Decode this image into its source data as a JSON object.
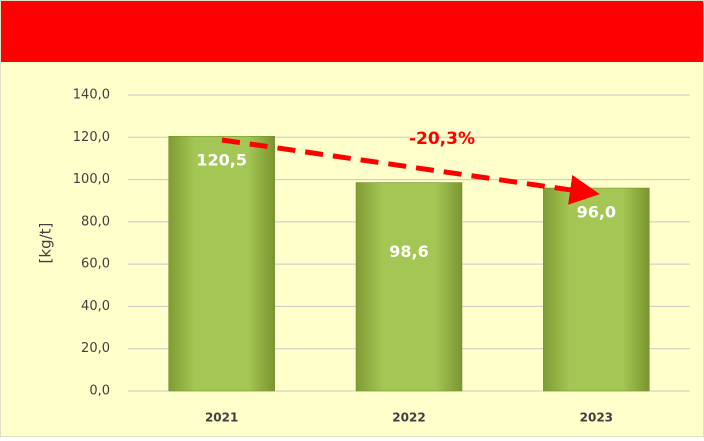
{
  "chart_data": {
    "type": "bar",
    "ylabel": "[kg/t]",
    "annotation": "-20,3%",
    "categories": [
      "2021",
      "2022",
      "2023"
    ],
    "values": [
      120.5,
      98.6,
      96.0
    ],
    "value_labels": [
      "120,5",
      "98,6",
      "96,0"
    ],
    "color": "#9bbb45",
    "ylim": [
      0,
      140
    ],
    "yticks": [
      {
        "value": 0,
        "label": "0,0"
      },
      {
        "value": 20,
        "label": "20,0"
      },
      {
        "value": 40,
        "label": "40,0"
      },
      {
        "value": 60,
        "label": "60,0"
      },
      {
        "value": 80,
        "label": "80,0"
      },
      {
        "value": 100,
        "label": "100,0"
      },
      {
        "value": 120,
        "label": "120,0"
      },
      {
        "value": 140,
        "label": "140,0"
      }
    ],
    "grid": true
  }
}
